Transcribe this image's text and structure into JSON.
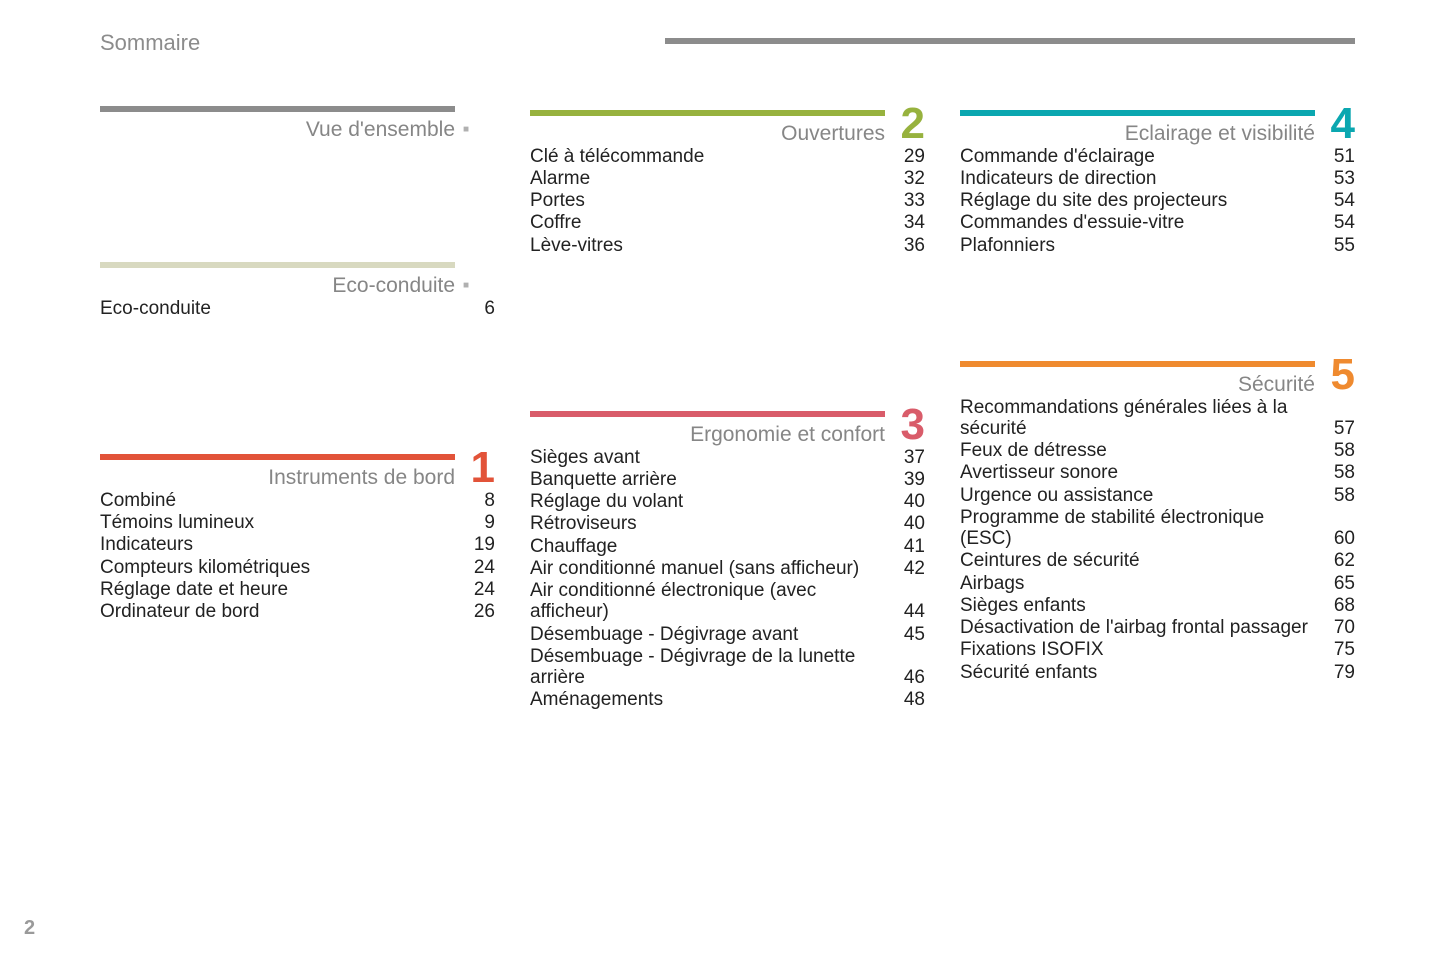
{
  "page_title": "Sommaire",
  "page_number": "2",
  "top_rule_color": "#8c8c8c",
  "columns": [
    [
      {
        "id": "overview",
        "title": "Vue d'ensemble",
        "rule_color": "#8c8c8c",
        "number": "",
        "number_color": "#8c8c8c",
        "bullet": "■",
        "entries": []
      },
      {
        "id": "eco",
        "title": "Eco-conduite",
        "rule_color": "#d8d9c0",
        "number": "",
        "number_color": "#d8d9c0",
        "bullet": "■",
        "entries": [
          {
            "label": "Eco-conduite",
            "page": "6"
          }
        ]
      },
      {
        "id": "instruments",
        "title": "Instruments de bord",
        "rule_color": "#e25339",
        "number": "1",
        "number_color": "#e25339",
        "bullet": "",
        "entries": [
          {
            "label": "Combiné",
            "page": "8"
          },
          {
            "label": "Témoins lumineux",
            "page": "9"
          },
          {
            "label": "Indicateurs",
            "page": "19"
          },
          {
            "label": "Compteurs kilométriques",
            "page": "24"
          },
          {
            "label": "Réglage date et heure",
            "page": "24"
          },
          {
            "label": "Ordinateur de bord",
            "page": "26"
          }
        ]
      }
    ],
    [
      {
        "id": "ouvertures",
        "title": "Ouvertures",
        "rule_color": "#97b23e",
        "number": "2",
        "number_color": "#97b23e",
        "bullet": "",
        "entries": [
          {
            "label": "Clé à télécommande",
            "page": "29"
          },
          {
            "label": "Alarme",
            "page": "32"
          },
          {
            "label": "Portes",
            "page": "33"
          },
          {
            "label": "Coffre",
            "page": "34"
          },
          {
            "label": "Lève-vitres",
            "page": "36"
          }
        ]
      },
      {
        "id": "ergonomie",
        "title": "Ergonomie et confort",
        "rule_color": "#d95c6a",
        "number": "3",
        "number_color": "#d95c6a",
        "bullet": "",
        "entries": [
          {
            "label": "Sièges avant",
            "page": "37"
          },
          {
            "label": "Banquette arrière",
            "page": "39"
          },
          {
            "label": "Réglage du volant",
            "page": "40"
          },
          {
            "label": "Rétroviseurs",
            "page": "40"
          },
          {
            "label": "Chauffage",
            "page": "41"
          },
          {
            "label": "Air conditionné manuel (sans afficheur)",
            "page": "42"
          },
          {
            "label": "Air conditionné électronique (avec afficheur)",
            "page": "44"
          },
          {
            "label": "Désembuage - Dégivrage avant",
            "page": "45"
          },
          {
            "label": "Désembuage - Dégivrage de la lunette arrière",
            "page": "46"
          },
          {
            "label": "Aménagements",
            "page": "48"
          }
        ]
      }
    ],
    [
      {
        "id": "eclairage",
        "title": "Eclairage et visibilité",
        "rule_color": "#0ba7b0",
        "number": "4",
        "number_color": "#0ba7b0",
        "bullet": "",
        "entries": [
          {
            "label": "Commande d'éclairage",
            "page": "51"
          },
          {
            "label": "Indicateurs de direction",
            "page": "53"
          },
          {
            "label": "Réglage du site des projecteurs",
            "page": "54"
          },
          {
            "label": "Commandes d'essuie-vitre",
            "page": "54"
          },
          {
            "label": "Plafonniers",
            "page": "55"
          }
        ]
      },
      {
        "id": "securite",
        "title": "Sécurité",
        "rule_color": "#ef8a2f",
        "number": "5",
        "number_color": "#ef8a2f",
        "bullet": "",
        "entries": [
          {
            "label": "Recommandations générales liées à la sécurité",
            "page": "57"
          },
          {
            "label": "Feux de détresse",
            "page": "58"
          },
          {
            "label": "Avertisseur sonore",
            "page": "58"
          },
          {
            "label": "Urgence ou assistance",
            "page": "58"
          },
          {
            "label": "Programme de stabilité électronique (ESC)",
            "page": "60"
          },
          {
            "label": "Ceintures de sécurité",
            "page": "62"
          },
          {
            "label": "Airbags",
            "page": "65"
          },
          {
            "label": "Sièges enfants",
            "page": "68"
          },
          {
            "label": "Désactivation de l'airbag frontal passager",
            "page": "70"
          },
          {
            "label": "Fixations ISOFIX",
            "page": "75"
          },
          {
            "label": "Sécurité enfants",
            "page": "79"
          }
        ]
      }
    ]
  ],
  "spacers": {
    "eco_before": 80,
    "instruments_before": 90,
    "ergonomie_before": 110,
    "securite_before": 60
  }
}
